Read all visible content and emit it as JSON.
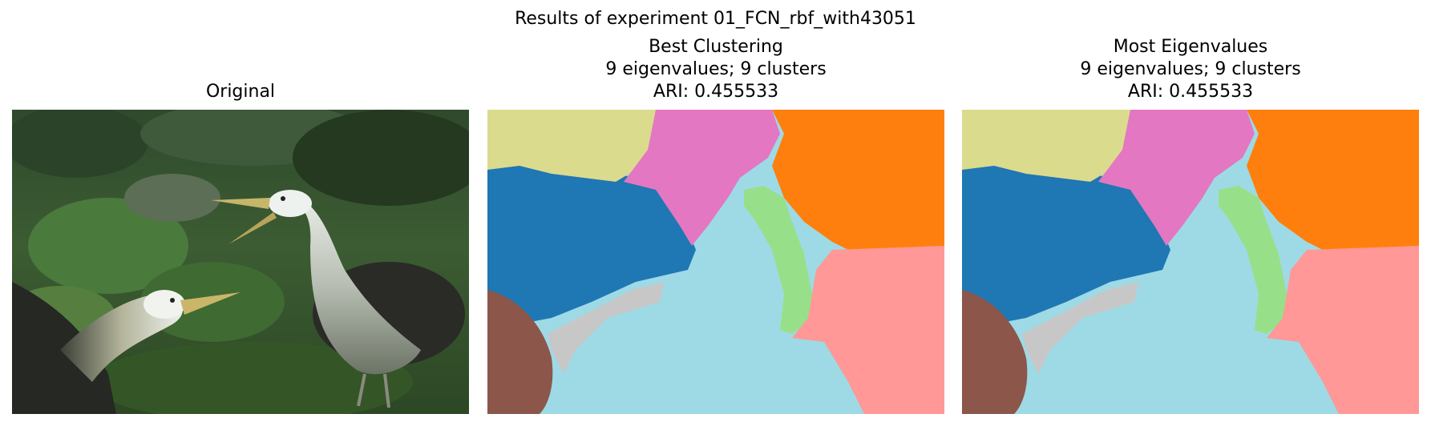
{
  "figure": {
    "suptitle": "Results of experiment 01_FCN_rbf_with43051"
  },
  "panels": [
    {
      "title_lines": [
        "Original"
      ],
      "image": "photo-two-waved-albatrosses-in-green-vegetation"
    },
    {
      "title_lines": [
        "Best Clustering",
        "9 eigenvalues; 9 clusters",
        "ARI: 0.455533"
      ],
      "image": "segmentation-map-9-clusters"
    },
    {
      "title_lines": [
        "Most Eigenvalues",
        "9 eigenvalues; 9 clusters",
        "ARI: 0.455533"
      ],
      "image": "segmentation-map-9-clusters"
    }
  ],
  "segment_colors": {
    "blue": "#1f77b4",
    "khaki": "#dbdb8d",
    "pink": "#e377c2",
    "orange": "#ff7f0e",
    "light_green": "#98df8a",
    "salmon": "#ff9896",
    "light_cyan": "#9edae5",
    "gray": "#c7c7c7",
    "brown": "#8c564b"
  }
}
